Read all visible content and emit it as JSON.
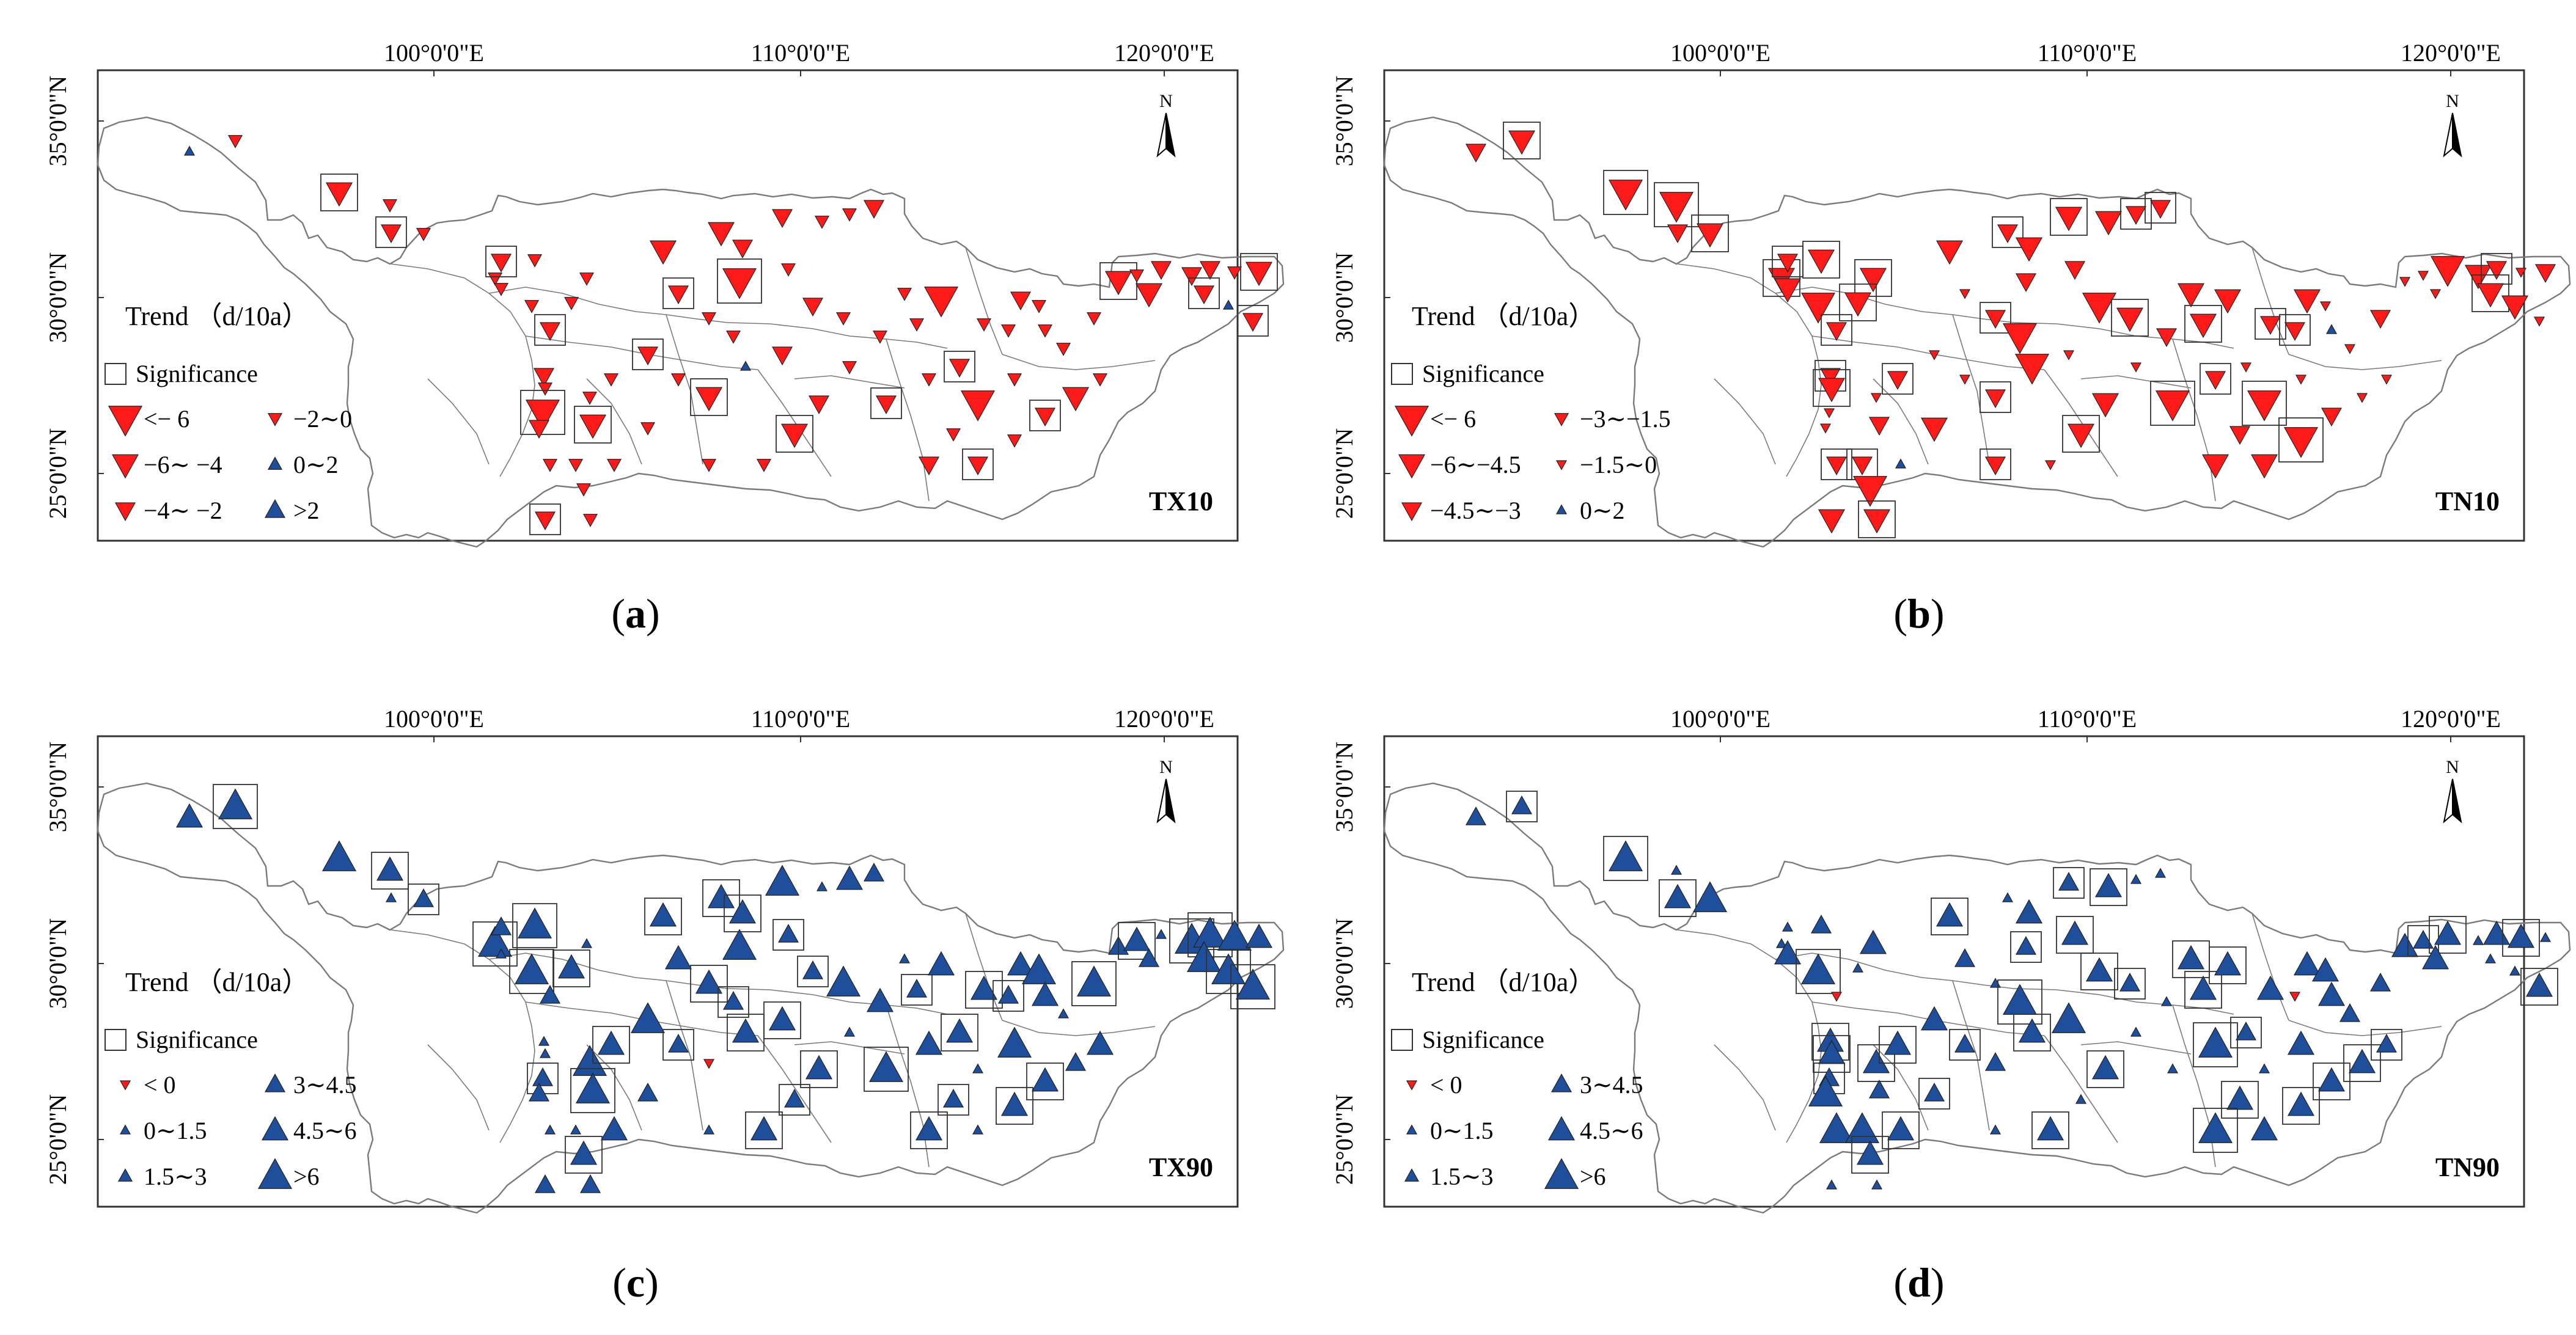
{
  "common": {
    "lon_ticks": [
      "100°0'0\"E",
      "110°0'0\"E",
      "120°0'0\"E"
    ],
    "lat_ticks": [
      "35°0'0\"N",
      "30°0'0\"N",
      "25°0'0\"N"
    ],
    "north_label": "N",
    "legend_title": "Trend （d/10a）",
    "significance_label": "Significance"
  },
  "colors": {
    "decrease": "#ff1a1a",
    "increase": "#1f4e9a",
    "boundary": "#7a7a7a",
    "frame": "#333333"
  },
  "panels": [
    {
      "id": "a",
      "caption_letter": "a",
      "code": "TX10",
      "kind": "cold",
      "legend": [
        {
          "label": "<− 6",
          "symbol": "down",
          "size": 5
        },
        {
          "label": "−6∼ −4",
          "symbol": "down",
          "size": 4
        },
        {
          "label": "−4∼ −2",
          "symbol": "down",
          "size": 3
        },
        {
          "label": "−2∼0",
          "symbol": "down",
          "size": 2
        },
        {
          "label": "0∼2",
          "symbol": "up",
          "size": 2
        },
        {
          "label": ">2",
          "symbol": "up",
          "size": 3
        }
      ]
    },
    {
      "id": "b",
      "caption_letter": "b",
      "code": "TN10",
      "kind": "cold",
      "legend": [
        {
          "label": "<− 6",
          "symbol": "down",
          "size": 5
        },
        {
          "label": "−6∼−4.5",
          "symbol": "down",
          "size": 4
        },
        {
          "label": "−4.5∼−3",
          "symbol": "down",
          "size": 3
        },
        {
          "label": "−3∼−1.5",
          "symbol": "down",
          "size": 2
        },
        {
          "label": "−1.5∼0",
          "symbol": "down",
          "size": 1
        },
        {
          "label": "0∼2",
          "symbol": "up",
          "size": 1
        }
      ]
    },
    {
      "id": "c",
      "caption_letter": "c",
      "code": "TX90",
      "kind": "warm",
      "legend": [
        {
          "label": "< 0",
          "symbol": "down",
          "size": 1
        },
        {
          "label": "0∼1.5",
          "symbol": "up",
          "size": 1
        },
        {
          "label": "1.5∼3",
          "symbol": "up",
          "size": 2
        },
        {
          "label": "3∼4.5",
          "symbol": "up",
          "size": 3
        },
        {
          "label": "4.5∼6",
          "symbol": "up",
          "size": 4
        },
        {
          "label": ">6",
          "symbol": "up",
          "size": 5
        }
      ]
    },
    {
      "id": "d",
      "caption_letter": "d",
      "code": "TN90",
      "kind": "warm",
      "legend": [
        {
          "label": "< 0",
          "symbol": "down",
          "size": 1
        },
        {
          "label": "0∼1.5",
          "symbol": "up",
          "size": 1
        },
        {
          "label": "1.5∼3",
          "symbol": "up",
          "size": 2
        },
        {
          "label": "3∼4.5",
          "symbol": "up",
          "size": 3
        },
        {
          "label": "4.5∼6",
          "symbol": "up",
          "size": 4
        },
        {
          "label": ">6",
          "symbol": "up",
          "size": 5
        }
      ]
    }
  ]
}
